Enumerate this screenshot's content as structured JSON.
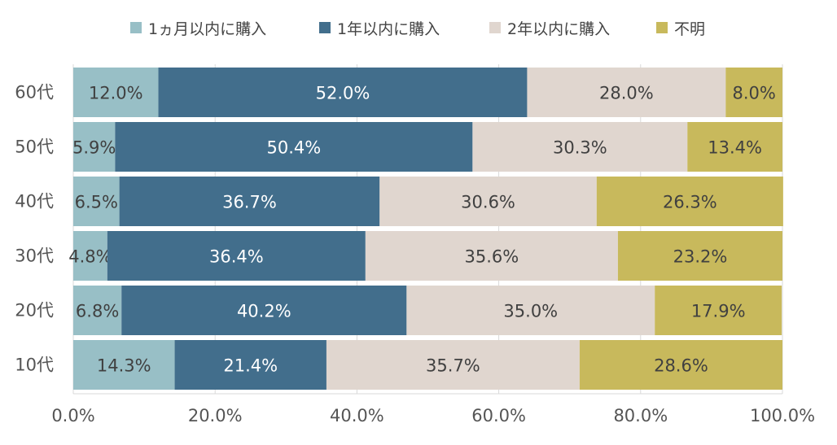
{
  "chart_data": {
    "type": "bar",
    "orientation": "horizontal",
    "stacked": true,
    "categories": [
      "60代",
      "50代",
      "40代",
      "30代",
      "20代",
      "10代"
    ],
    "series": [
      {
        "name": "1ヵ月以内に購入",
        "color": "#98BFC6",
        "values": [
          12.0,
          5.9,
          6.5,
          4.8,
          6.8,
          14.3
        ],
        "labels": [
          "12.0%",
          "5.9%",
          "6.5%",
          "4.8%",
          "6.8%",
          "14.3%"
        ]
      },
      {
        "name": "1年以内に購入",
        "color": "#426E8C",
        "values": [
          52.0,
          50.4,
          36.7,
          36.4,
          40.2,
          21.4
        ],
        "labels": [
          "52.0%",
          "50.4%",
          "36.7%",
          "36.4%",
          "40.2%",
          "21.4%"
        ]
      },
      {
        "name": "2年以内に購入",
        "color": "#E0D6CF",
        "values": [
          28.0,
          30.3,
          30.6,
          35.6,
          35.0,
          35.7
        ],
        "labels": [
          "28.0%",
          "30.3%",
          "30.6%",
          "35.6%",
          "35.0%",
          "35.7%"
        ]
      },
      {
        "name": "不明",
        "color": "#C8B95C",
        "values": [
          8.0,
          13.4,
          26.3,
          23.2,
          17.9,
          28.6
        ],
        "labels": [
          "8.0%",
          "13.4%",
          "26.3%",
          "23.2%",
          "17.9%",
          "28.6%"
        ]
      }
    ],
    "xlim": [
      0,
      100
    ],
    "xticks": [
      0,
      20,
      40,
      60,
      80,
      100
    ],
    "xtick_labels": [
      "0.0%",
      "20.0%",
      "40.0%",
      "60.0%",
      "80.0%",
      "100.0%"
    ],
    "grid": true,
    "legend_position": "top",
    "title": "",
    "xlabel": "",
    "ylabel": ""
  }
}
